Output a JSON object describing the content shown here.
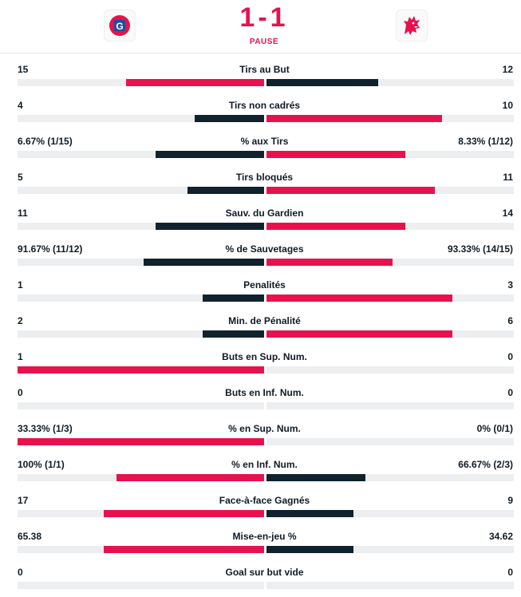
{
  "header": {
    "score": "1-1",
    "status": "PAUSE",
    "home_logo_text": "G",
    "colors": {
      "accent": "#e7124d",
      "dark": "#0f222e",
      "track": "#eceef0"
    }
  },
  "stats": [
    {
      "label": "Tirs au But",
      "home": "15",
      "away": "12",
      "home_pct": 0.56,
      "away_pct": 0.45,
      "leader": "home"
    },
    {
      "label": "Tirs non cadrés",
      "home": "4",
      "away": "10",
      "home_pct": 0.28,
      "away_pct": 0.71,
      "leader": "away"
    },
    {
      "label": "% aux Tirs",
      "home": "6.67% (1/15)",
      "away": "8.33% (1/12)",
      "home_pct": 0.44,
      "away_pct": 0.56,
      "leader": "away"
    },
    {
      "label": "Tirs bloqués",
      "home": "5",
      "away": "11",
      "home_pct": 0.31,
      "away_pct": 0.68,
      "leader": "away"
    },
    {
      "label": "Sauv. du Gardien",
      "home": "11",
      "away": "14",
      "home_pct": 0.44,
      "away_pct": 0.56,
      "leader": "away"
    },
    {
      "label": "% de Sauvetages",
      "home": "91.67% (11/12)",
      "away": "93.33% (14/15)",
      "home_pct": 0.49,
      "away_pct": 0.51,
      "leader": "away"
    },
    {
      "label": "Penalités",
      "home": "1",
      "away": "3",
      "home_pct": 0.25,
      "away_pct": 0.75,
      "leader": "away"
    },
    {
      "label": "Min. de Pénalité",
      "home": "2",
      "away": "6",
      "home_pct": 0.25,
      "away_pct": 0.75,
      "leader": "away"
    },
    {
      "label": "Buts en Sup. Num.",
      "home": "1",
      "away": "0",
      "home_pct": 1.0,
      "away_pct": 0.0,
      "leader": "home"
    },
    {
      "label": "Buts en Inf. Num.",
      "home": "0",
      "away": "0",
      "home_pct": 0.0,
      "away_pct": 0.0,
      "leader": "none"
    },
    {
      "label": "% en Sup. Num.",
      "home": "33.33% (1/3)",
      "away": "0% (0/1)",
      "home_pct": 1.0,
      "away_pct": 0.0,
      "leader": "home"
    },
    {
      "label": "% en Inf. Num.",
      "home": "100% (1/1)",
      "away": "66.67% (2/3)",
      "home_pct": 0.6,
      "away_pct": 0.4,
      "leader": "home"
    },
    {
      "label": "Face-à-face Gagnés",
      "home": "17",
      "away": "9",
      "home_pct": 0.65,
      "away_pct": 0.35,
      "leader": "home"
    },
    {
      "label": "Mise-en-jeu %",
      "home": "65.38",
      "away": "34.62",
      "home_pct": 0.65,
      "away_pct": 0.35,
      "leader": "home"
    },
    {
      "label": "Goal sur but vide",
      "home": "0",
      "away": "0",
      "home_pct": 0.0,
      "away_pct": 0.0,
      "leader": "none"
    }
  ]
}
